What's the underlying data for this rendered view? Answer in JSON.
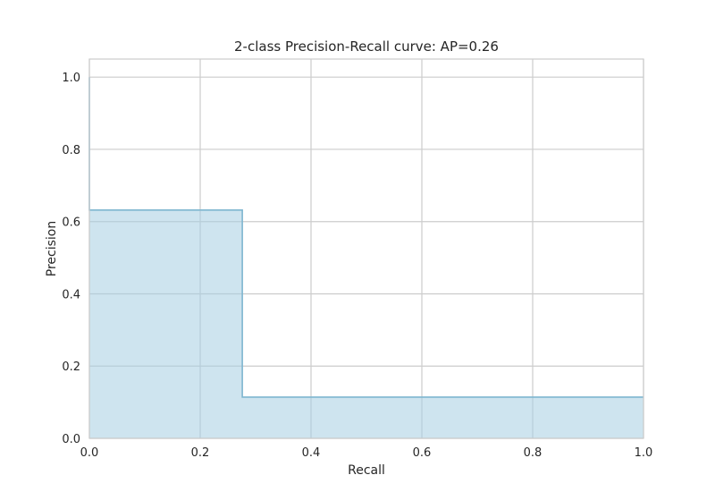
{
  "chart_data": {
    "type": "area",
    "title": "2-class Precision-Recall curve: AP=0.26",
    "xlabel": "Recall",
    "ylabel": "Precision",
    "xlim": [
      0.0,
      1.0
    ],
    "ylim": [
      0.0,
      1.05
    ],
    "x_ticks": [
      0.0,
      0.2,
      0.4,
      0.6,
      0.8,
      1.0
    ],
    "y_ticks": [
      0.0,
      0.2,
      0.4,
      0.6,
      0.8,
      1.0
    ],
    "x_tick_labels": [
      "0.0",
      "0.2",
      "0.4",
      "0.6",
      "0.8",
      "1.0"
    ],
    "y_tick_labels": [
      "0.0",
      "0.2",
      "0.4",
      "0.6",
      "0.8",
      "1.0"
    ],
    "grid": true,
    "step": "post",
    "series": [
      {
        "recall": [
          0.0,
          0.0,
          0.276,
          0.276,
          1.0
        ],
        "precision": [
          1.0,
          0.632,
          0.632,
          0.114,
          0.114
        ]
      }
    ],
    "colors": {
      "fill": "#a6cde2",
      "edge": "#7fb6d0",
      "grid": "#cccccc",
      "spine": "#cccccc",
      "text": "#262626"
    }
  }
}
